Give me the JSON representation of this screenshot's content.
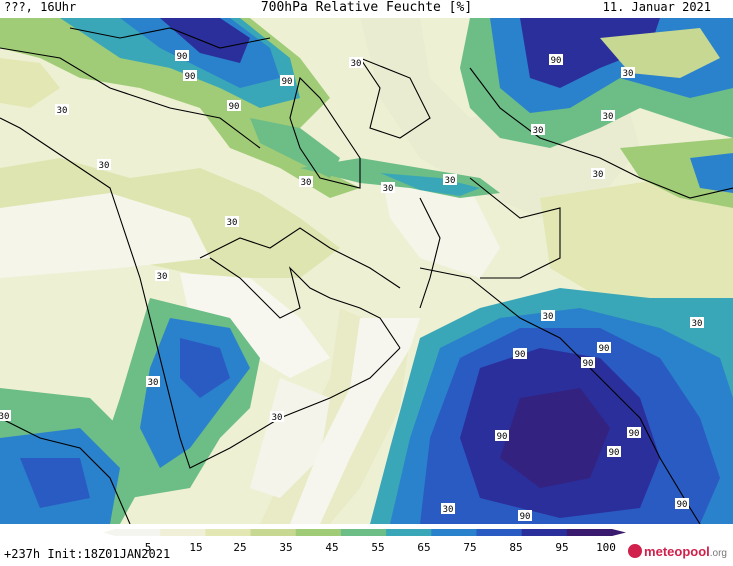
{
  "header": {
    "left": "???, 16Uhr",
    "title": "700hPa Relative Feuchte [%]",
    "date": "11. Januar 2021"
  },
  "footer": {
    "run": "+237h  Init:18Z01JAN2021"
  },
  "logo": {
    "brand": "meteopool",
    "tld": ".org"
  },
  "scale": {
    "ticks": [
      "5",
      "15",
      "25",
      "35",
      "45",
      "55",
      "65",
      "75",
      "85",
      "95",
      "100"
    ],
    "colors": [
      "#f5f5f0",
      "#f0efd8",
      "#e3e7b4",
      "#c6d892",
      "#a0cc78",
      "#6cbd86",
      "#3aa7b8",
      "#2a82cc",
      "#2a5bc2",
      "#2a2f9c",
      "#3a1a6e"
    ]
  },
  "contour_labels": [
    "90",
    "30"
  ]
}
